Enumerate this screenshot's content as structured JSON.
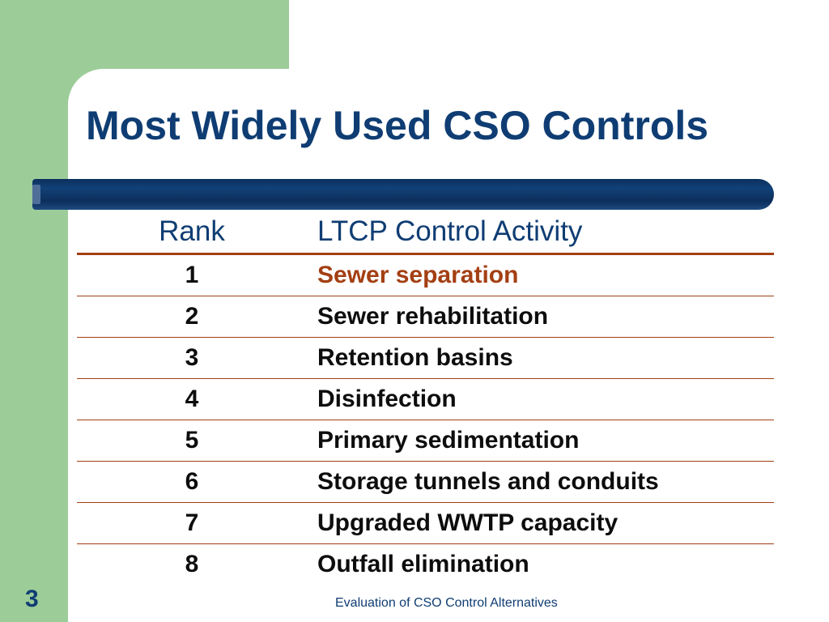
{
  "slide": {
    "title": "Most Widely Used CSO Controls",
    "page_number": "3",
    "footer": "Evaluation of CSO Control Alternatives"
  },
  "table": {
    "headers": {
      "rank": "Rank",
      "activity": "LTCP Control Activity"
    },
    "rows": [
      {
        "rank": "1",
        "activity": "Sewer separation"
      },
      {
        "rank": "2",
        "activity": "Sewer rehabilitation"
      },
      {
        "rank": "3",
        "activity": "Retention basins"
      },
      {
        "rank": "4",
        "activity": "Disinfection"
      },
      {
        "rank": "5",
        "activity": "Primary sedimentation"
      },
      {
        "rank": "6",
        "activity": "Storage tunnels and conduits"
      },
      {
        "rank": "7",
        "activity": "Upgraded WWTP capacity"
      },
      {
        "rank": "8",
        "activity": "Outfall elimination"
      }
    ]
  },
  "colors": {
    "title": "#0f3d73",
    "accent": "#a33f13",
    "green_background": "#9ccc98",
    "highlight_row": "#a33f13"
  }
}
